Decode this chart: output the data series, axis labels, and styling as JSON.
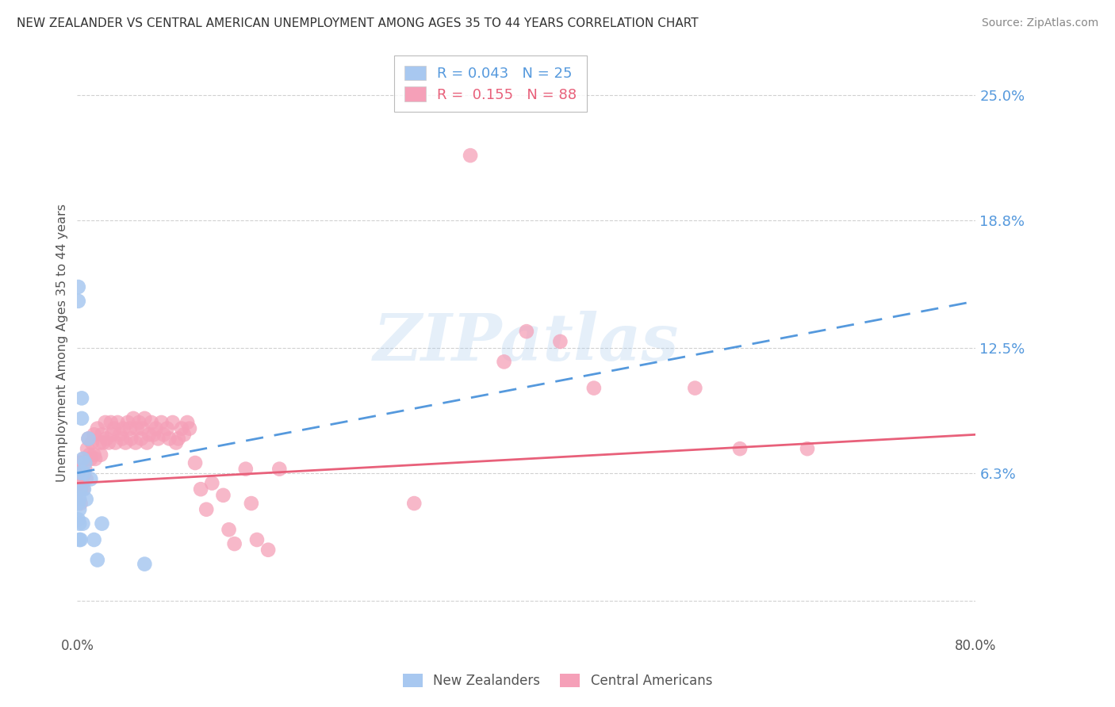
{
  "title": "NEW ZEALANDER VS CENTRAL AMERICAN UNEMPLOYMENT AMONG AGES 35 TO 44 YEARS CORRELATION CHART",
  "source": "Source: ZipAtlas.com",
  "ylabel": "Unemployment Among Ages 35 to 44 years",
  "xmin": 0.0,
  "xmax": 0.8,
  "ymin": -0.015,
  "ymax": 0.27,
  "yticks": [
    0.0,
    0.063,
    0.125,
    0.188,
    0.25
  ],
  "ytick_labels": [
    "",
    "6.3%",
    "12.5%",
    "18.8%",
    "25.0%"
  ],
  "grid_color": "#cccccc",
  "background_color": "#ffffff",
  "nz_color": "#a8c8f0",
  "ca_color": "#f5a0b8",
  "nz_line_color": "#5599dd",
  "ca_line_color": "#e8607a",
  "legend_nz_r": "0.043",
  "legend_nz_n": "25",
  "legend_ca_r": "0.155",
  "legend_ca_n": "88",
  "watermark": "ZIPatlas",
  "title_color": "#333333",
  "axis_tick_color": "#5599dd",
  "nz_scatter_x": [
    0.001,
    0.001,
    0.001,
    0.001,
    0.002,
    0.002,
    0.002,
    0.002,
    0.003,
    0.003,
    0.003,
    0.004,
    0.004,
    0.005,
    0.005,
    0.006,
    0.006,
    0.007,
    0.008,
    0.01,
    0.012,
    0.015,
    0.018,
    0.022,
    0.06
  ],
  "nz_scatter_y": [
    0.155,
    0.148,
    0.048,
    0.04,
    0.05,
    0.045,
    0.038,
    0.03,
    0.063,
    0.055,
    0.03,
    0.1,
    0.09,
    0.07,
    0.038,
    0.063,
    0.055,
    0.068,
    0.05,
    0.08,
    0.06,
    0.03,
    0.02,
    0.038,
    0.018
  ],
  "ca_scatter_x": [
    0.001,
    0.001,
    0.002,
    0.002,
    0.003,
    0.003,
    0.003,
    0.004,
    0.004,
    0.005,
    0.005,
    0.006,
    0.006,
    0.007,
    0.008,
    0.009,
    0.01,
    0.011,
    0.012,
    0.013,
    0.015,
    0.015,
    0.016,
    0.018,
    0.02,
    0.021,
    0.022,
    0.023,
    0.025,
    0.026,
    0.028,
    0.03,
    0.031,
    0.033,
    0.034,
    0.036,
    0.038,
    0.04,
    0.041,
    0.043,
    0.045,
    0.047,
    0.048,
    0.05,
    0.052,
    0.053,
    0.055,
    0.057,
    0.058,
    0.06,
    0.062,
    0.064,
    0.066,
    0.068,
    0.07,
    0.072,
    0.075,
    0.077,
    0.08,
    0.082,
    0.085,
    0.088,
    0.09,
    0.093,
    0.095,
    0.098,
    0.1,
    0.105,
    0.11,
    0.115,
    0.12,
    0.13,
    0.135,
    0.14,
    0.15,
    0.155,
    0.16,
    0.17,
    0.18,
    0.3,
    0.35,
    0.38,
    0.4,
    0.43,
    0.46,
    0.55,
    0.59,
    0.65
  ],
  "ca_scatter_y": [
    0.063,
    0.055,
    0.068,
    0.058,
    0.063,
    0.055,
    0.048,
    0.068,
    0.06,
    0.063,
    0.055,
    0.07,
    0.062,
    0.065,
    0.06,
    0.075,
    0.08,
    0.072,
    0.07,
    0.078,
    0.082,
    0.072,
    0.07,
    0.085,
    0.078,
    0.072,
    0.082,
    0.078,
    0.088,
    0.08,
    0.078,
    0.088,
    0.082,
    0.085,
    0.078,
    0.088,
    0.082,
    0.08,
    0.085,
    0.078,
    0.088,
    0.085,
    0.08,
    0.09,
    0.078,
    0.085,
    0.088,
    0.08,
    0.085,
    0.09,
    0.078,
    0.082,
    0.088,
    0.082,
    0.085,
    0.08,
    0.088,
    0.082,
    0.085,
    0.08,
    0.088,
    0.078,
    0.08,
    0.085,
    0.082,
    0.088,
    0.085,
    0.068,
    0.055,
    0.045,
    0.058,
    0.052,
    0.035,
    0.028,
    0.065,
    0.048,
    0.03,
    0.025,
    0.065,
    0.048,
    0.22,
    0.118,
    0.133,
    0.128,
    0.105,
    0.105,
    0.075,
    0.075
  ],
  "nz_trendline_x": [
    0.0,
    0.8
  ],
  "nz_trendline_y": [
    0.063,
    0.148
  ],
  "ca_trendline_x": [
    0.0,
    0.8
  ],
  "ca_trendline_y": [
    0.058,
    0.082
  ]
}
